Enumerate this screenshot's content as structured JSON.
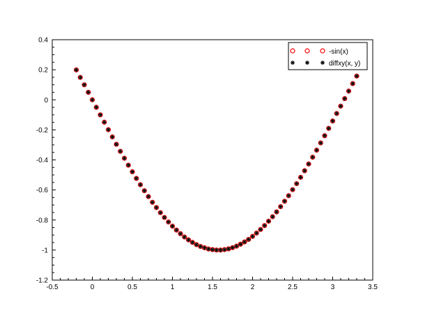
{
  "chart_data": {
    "type": "scatter",
    "xlim": [
      -0.5,
      3.5
    ],
    "ylim": [
      -1.2,
      0.4
    ],
    "xticks": [
      "-0.5",
      "0",
      "0.5",
      "1",
      "1.5",
      "2",
      "2.5",
      "3",
      "3.5"
    ],
    "yticks": [
      "0.4",
      "0.2",
      "0",
      "-0.2",
      "-0.4",
      "-0.6",
      "-0.8",
      "-1",
      "-1.2"
    ],
    "grid": false,
    "legend_position": "top-right",
    "x": [
      -0.2,
      -0.15,
      -0.1,
      -0.05,
      0,
      0.05,
      0.1,
      0.15,
      0.2,
      0.25,
      0.3,
      0.35,
      0.4,
      0.45,
      0.5,
      0.55,
      0.6,
      0.65,
      0.7,
      0.75,
      0.8,
      0.85,
      0.9,
      0.95,
      1.0,
      1.05,
      1.1,
      1.15,
      1.2,
      1.25,
      1.3,
      1.35,
      1.4,
      1.45,
      1.5,
      1.55,
      1.6,
      1.65,
      1.7,
      1.75,
      1.8,
      1.85,
      1.9,
      1.95,
      2.0,
      2.05,
      2.1,
      2.15,
      2.2,
      2.25,
      2.3,
      2.35,
      2.4,
      2.45,
      2.5,
      2.55,
      2.6,
      2.65,
      2.7,
      2.75,
      2.8,
      2.85,
      2.9,
      2.95,
      3.0,
      3.05,
      3.1,
      3.15,
      3.2,
      3.25,
      3.3
    ],
    "series": [
      {
        "name": "-sin(x)",
        "marker": "circle",
        "color": "#ff0000",
        "y": [
          0.199,
          0.149,
          0.1,
          0.05,
          0,
          -0.05,
          -0.1,
          -0.149,
          -0.199,
          -0.247,
          -0.296,
          -0.343,
          -0.389,
          -0.435,
          -0.479,
          -0.523,
          -0.565,
          -0.605,
          -0.644,
          -0.682,
          -0.717,
          -0.751,
          -0.783,
          -0.813,
          -0.841,
          -0.867,
          -0.891,
          -0.913,
          -0.932,
          -0.949,
          -0.964,
          -0.976,
          -0.985,
          -0.993,
          -0.997,
          -1.0,
          -1.0,
          -0.997,
          -0.992,
          -0.984,
          -0.974,
          -0.961,
          -0.946,
          -0.929,
          -0.909,
          -0.887,
          -0.863,
          -0.837,
          -0.808,
          -0.778,
          -0.746,
          -0.711,
          -0.675,
          -0.638,
          -0.598,
          -0.558,
          -0.516,
          -0.472,
          -0.427,
          -0.382,
          -0.335,
          -0.287,
          -0.239,
          -0.19,
          -0.141,
          -0.091,
          -0.042,
          0.008,
          0.058,
          0.108,
          0.158
        ]
      },
      {
        "name": "diffxy(x, y)",
        "marker": "asterisk",
        "color": "#000000",
        "y": [
          0.199,
          0.149,
          0.1,
          0.05,
          0,
          -0.05,
          -0.1,
          -0.149,
          -0.199,
          -0.247,
          -0.296,
          -0.343,
          -0.389,
          -0.435,
          -0.479,
          -0.523,
          -0.565,
          -0.605,
          -0.644,
          -0.682,
          -0.717,
          -0.751,
          -0.783,
          -0.813,
          -0.841,
          -0.867,
          -0.891,
          -0.913,
          -0.932,
          -0.949,
          -0.964,
          -0.976,
          -0.985,
          -0.993,
          -0.997,
          -1.0,
          -1.0,
          -0.997,
          -0.992,
          -0.984,
          -0.974,
          -0.961,
          -0.946,
          -0.929,
          -0.909,
          -0.887,
          -0.863,
          -0.837,
          -0.808,
          -0.778,
          -0.746,
          -0.711,
          -0.675,
          -0.638,
          -0.598,
          -0.558,
          -0.516,
          -0.472,
          -0.427,
          -0.382,
          -0.335,
          -0.287,
          -0.239,
          -0.19,
          -0.141,
          -0.091,
          -0.042,
          0.008,
          0.058,
          0.108,
          0.158
        ]
      }
    ]
  }
}
